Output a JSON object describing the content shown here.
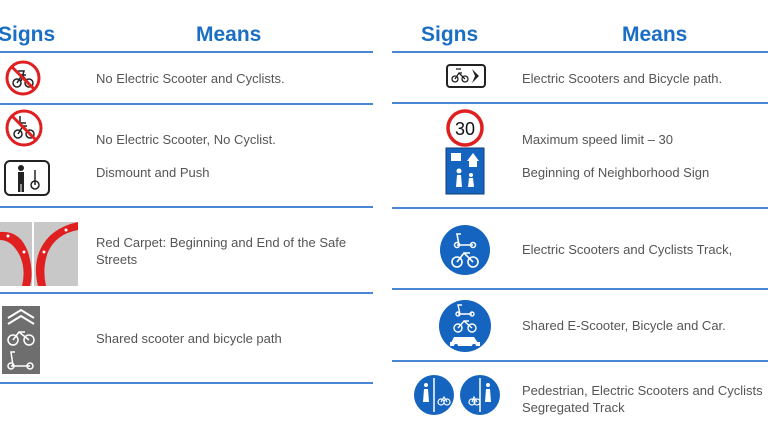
{
  "left_table": {
    "header_signs": "Signs",
    "header_means": "Means",
    "rows": [
      {
        "icon": "no-scooter-bicycle-icon",
        "meaning": "No Electric Scooter and Cyclists."
      },
      {
        "icon": "no-scooter-no-cyclist-icon",
        "meaning": "No Electric Scooter, No Cyclist."
      },
      {
        "icon": "dismount-push-icon",
        "meaning": "Dismount and Push"
      },
      {
        "icon": "red-carpet-icon",
        "meaning": "Red Carpet: Beginning and End of the Safe Streets"
      },
      {
        "icon": "shared-scooter-bicycle-path-icon",
        "meaning": "Shared scooter and bicycle path"
      }
    ]
  },
  "right_table": {
    "header_signs": "Signs",
    "header_means": "Means",
    "speed_limit_value": "30",
    "rows": [
      {
        "icon": "scooter-bicycle-path-arrow-icon",
        "meaning": "Electric Scooters and Bicycle path."
      },
      {
        "icon": "speed-limit-icon",
        "meaning": "Maximum speed limit – 30"
      },
      {
        "icon": "neighborhood-icon",
        "meaning": "Beginning of Neighborhood Sign"
      },
      {
        "icon": "scooter-cyclist-track-icon",
        "meaning": "Electric Scooters and Cyclists Track,"
      },
      {
        "icon": "shared-scooter-bicycle-car-icon",
        "meaning": "Shared E-Scooter, Bicycle and Car."
      },
      {
        "icon": "segregated-track-icon",
        "meaning": "Pedestrian, Electric Scooters and Cyclists Segregated Track"
      }
    ]
  },
  "colors": {
    "header": "#1a6fc4",
    "rule": "#4a86d4",
    "sign_red": "#e02020",
    "sign_blue": "#1565c0",
    "text": "#555555"
  }
}
